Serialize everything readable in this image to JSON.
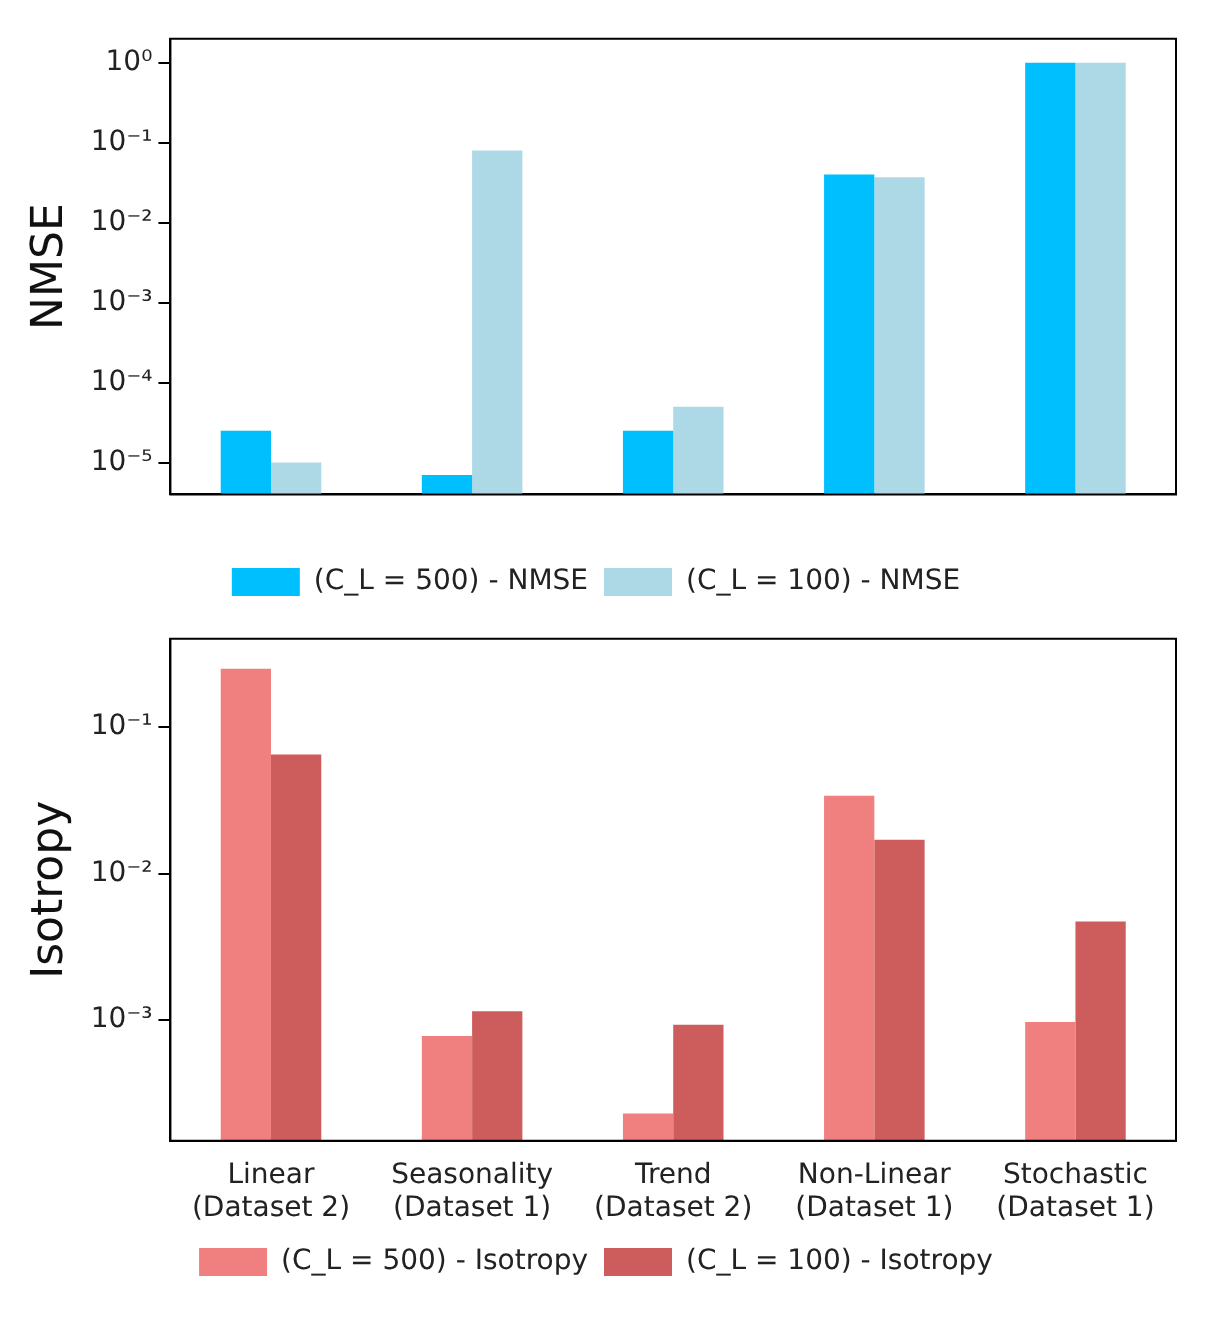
{
  "chart_data": [
    {
      "type": "bar",
      "ylabel": "NMSE",
      "categories": [
        null,
        null,
        null,
        null,
        null
      ],
      "log": "y",
      "ylim": [
        4e-06,
        2
      ],
      "yticks": [
        {
          "value": 1e-05,
          "label": "10⁻⁵"
        },
        {
          "value": 0.0001,
          "label": "10⁻⁴"
        },
        {
          "value": 0.001,
          "label": "10⁻³"
        },
        {
          "value": 0.01,
          "label": "10⁻²"
        },
        {
          "value": 0.1,
          "label": "10⁻¹"
        },
        {
          "value": 1,
          "label": "10⁰"
        }
      ],
      "legend": "bottom",
      "grid": false,
      "series": [
        {
          "name": "(C_L = 500) - NMSE",
          "color": "#00bfff",
          "values": [
            2.5e-05,
            7e-06,
            2.5e-05,
            0.04,
            1
          ]
        },
        {
          "name": "(C_L = 100) - NMSE",
          "color": "#add8e6",
          "values": [
            1e-05,
            0.08,
            5e-05,
            0.037,
            1
          ]
        }
      ]
    },
    {
      "type": "bar",
      "ylabel": "Isotropy",
      "categories": [
        "Linear\n(Dataset 2)",
        "Seasonality\n(Dataset 1)",
        "Trend\n(Dataset 2)",
        "Non-Linear\n(Dataset 1)",
        "Stochastic\n(Dataset 1)"
      ],
      "log": "y",
      "ylim": [
        0.00015,
        0.4
      ],
      "yticks": [
        {
          "value": 0.001,
          "label": "10⁻³"
        },
        {
          "value": 0.01,
          "label": "10⁻²"
        },
        {
          "value": 0.1,
          "label": "10⁻¹"
        }
      ],
      "legend": "bottom",
      "grid": false,
      "series": [
        {
          "name": "(C_L = 500) - Isotropy",
          "color": "#f08080",
          "values": [
            0.25,
            0.00078,
            0.00023,
            0.034,
            0.00097
          ]
        },
        {
          "name": "(C_L = 100) - Isotropy",
          "color": "#cd5c5c",
          "values": [
            0.065,
            0.00115,
            0.00093,
            0.017,
            0.0047
          ]
        }
      ]
    }
  ]
}
